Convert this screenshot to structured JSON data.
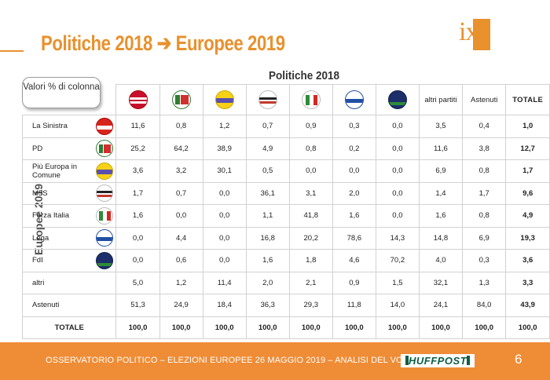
{
  "title_left": "Politiche 2018",
  "title_arrow": "➔",
  "title_right": "Europee 2019",
  "logo_text": "ixè",
  "table_header_label": "Politiche 2018",
  "valori_label": "Valori % di colonna",
  "side_label": "Europee 2019",
  "footer": {
    "text": "OSSERVATORIO POLITICO – ELEZIONI EUROPEE 26 MAGGIO 2019 – ANALISI DEL VOTO",
    "brand": "HUFFPOST",
    "page_number": "6"
  },
  "chart_data": {
    "type": "table",
    "title": "Politiche 2018 ➔ Europee 2019",
    "column_group_label": "Politiche 2018",
    "row_group_label": "Europee 2019",
    "corner_label": "Valori % di colonna",
    "columns": [
      {
        "key": "leu",
        "label": "",
        "logo": "liberi-e-uguali-logo"
      },
      {
        "key": "pd",
        "label": "",
        "logo": "pd-logo"
      },
      {
        "key": "piu_europa",
        "label": "",
        "logo": "piu-europa-logo"
      },
      {
        "key": "m5s",
        "label": "",
        "logo": "m5s-logo"
      },
      {
        "key": "forza_italia",
        "label": "",
        "logo": "forza-italia-logo"
      },
      {
        "key": "lega",
        "label": "",
        "logo": "lega-logo"
      },
      {
        "key": "fdi",
        "label": "",
        "logo": "fdi-logo"
      },
      {
        "key": "altri",
        "label": "altri partiti",
        "logo": ""
      },
      {
        "key": "astenuti",
        "label": "Astenuti",
        "logo": ""
      },
      {
        "key": "totale",
        "label": "TOTALE",
        "logo": ""
      }
    ],
    "rows": [
      {
        "label": "La Sinistra",
        "logo": "la-sinistra-logo",
        "values": [
          "11,6",
          "0,8",
          "1,2",
          "0,7",
          "0,9",
          "0,3",
          "0,0",
          "3,5",
          "0,4",
          "1,0"
        ]
      },
      {
        "label": "PD",
        "logo": "pd-logo",
        "values": [
          "25,2",
          "64,2",
          "38,9",
          "4,9",
          "0,8",
          "0,2",
          "0,0",
          "11,6",
          "3,8",
          "12,7"
        ]
      },
      {
        "label": "Più Europa in Comune",
        "logo": "piu-europa-logo",
        "values": [
          "3,6",
          "3,2",
          "30,1",
          "0,5",
          "0,0",
          "0,0",
          "0,0",
          "6,9",
          "0,8",
          "1,7"
        ]
      },
      {
        "label": "M5S",
        "logo": "m5s-logo",
        "values": [
          "1,7",
          "0,7",
          "0,0",
          "36,1",
          "3,1",
          "2,0",
          "0,0",
          "1,4",
          "1,7",
          "9,6"
        ]
      },
      {
        "label": "Forza Italia",
        "logo": "forza-italia-logo",
        "values": [
          "1,6",
          "0,0",
          "0,0",
          "1,1",
          "41,8",
          "1,6",
          "0,0",
          "1,6",
          "0,8",
          "4,9"
        ]
      },
      {
        "label": "Lega",
        "logo": "lega-logo",
        "values": [
          "0,0",
          "4,4",
          "0,0",
          "16,8",
          "20,2",
          "78,6",
          "14,3",
          "14,8",
          "6,9",
          "19,3"
        ]
      },
      {
        "label": "FdI",
        "logo": "fdi-logo",
        "values": [
          "0,0",
          "0,6",
          "0,0",
          "1,6",
          "1,8",
          "4,6",
          "70,2",
          "4,0",
          "0,3",
          "3,6"
        ]
      },
      {
        "label": "altri",
        "logo": "",
        "values": [
          "5,0",
          "1,2",
          "11,4",
          "2,0",
          "2,1",
          "0,9",
          "1,5",
          "32,1",
          "1,3",
          "3,3"
        ]
      },
      {
        "label": "Astenuti",
        "logo": "",
        "values": [
          "51,3",
          "24,9",
          "18,4",
          "36,3",
          "29,3",
          "11,8",
          "14,0",
          "24,1",
          "84,0",
          "43,9"
        ]
      },
      {
        "label": "TOTALE",
        "logo": "",
        "values": [
          "100,0",
          "100,0",
          "100,0",
          "100,0",
          "100,0",
          "100,0",
          "100,0",
          "100,0",
          "100,0",
          "100,0"
        ]
      }
    ]
  },
  "colors": {
    "accent_orange": "#e8912d",
    "footer_orange": "#ef8c36",
    "grid": "#d2d2d2",
    "huffpost_green": "#0c5e44"
  }
}
